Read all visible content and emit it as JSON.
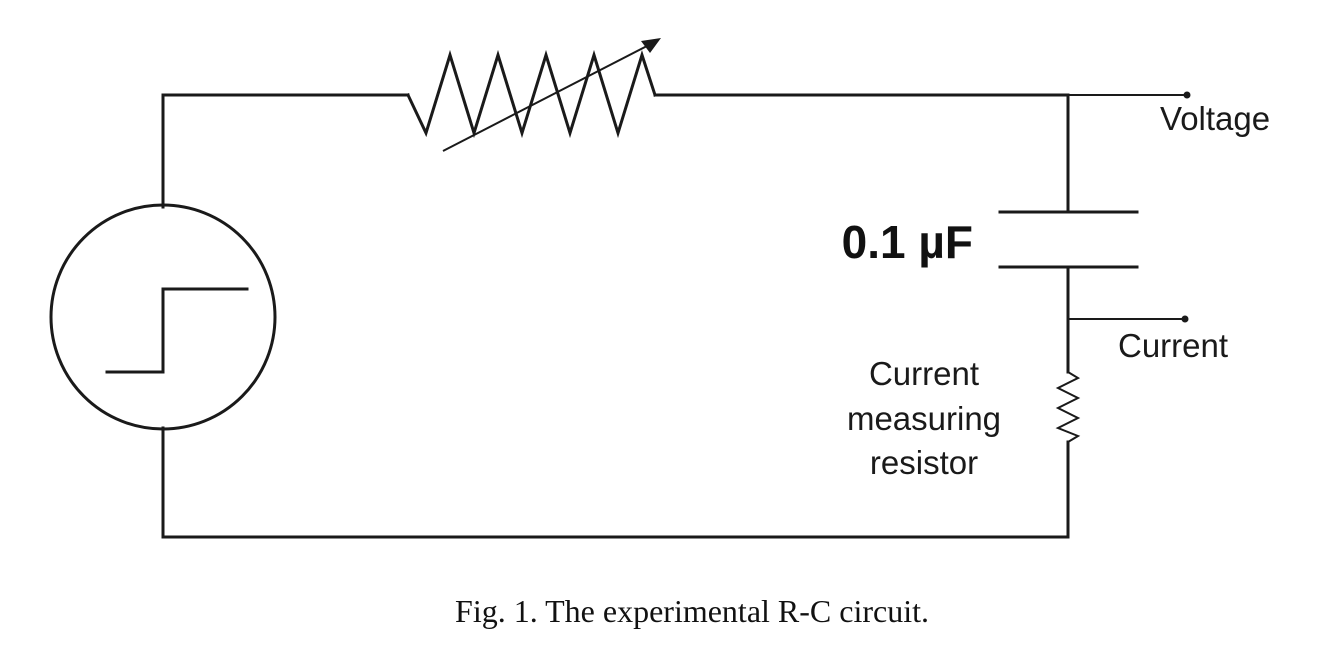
{
  "diagram": {
    "labels": {
      "voltage": "Voltage",
      "capacitance": "0.1 µF",
      "current": "Current",
      "sense_resistor": [
        "Current",
        "measuring",
        "resistor"
      ]
    },
    "caption": "Fig. 1. The experimental R-C circuit."
  }
}
